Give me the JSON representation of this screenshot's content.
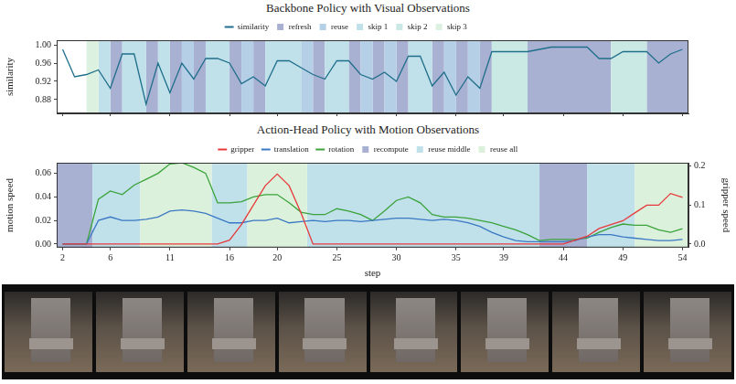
{
  "chart_data": [
    {
      "type": "line",
      "title": "Backbone Policy with Visual Observations",
      "y_label": "similarity",
      "x": [
        2,
        3,
        4,
        5,
        6,
        7,
        8,
        9,
        10,
        11,
        12,
        13,
        14,
        15,
        16,
        17,
        18,
        19,
        20,
        21,
        22,
        23,
        24,
        25,
        26,
        27,
        28,
        29,
        30,
        31,
        32,
        33,
        34,
        35,
        36,
        37,
        38,
        39,
        40,
        41,
        42,
        43,
        44,
        45,
        46,
        47,
        48,
        49,
        50,
        51,
        52,
        53,
        54
      ],
      "series": [
        {
          "name": "similarity",
          "color": "#1f6f8b",
          "values": [
            0.99,
            0.93,
            0.935,
            0.945,
            0.905,
            0.98,
            0.98,
            0.87,
            0.96,
            0.895,
            0.96,
            0.925,
            0.97,
            0.97,
            0.96,
            0.915,
            0.93,
            0.91,
            0.965,
            0.965,
            0.95,
            0.935,
            0.925,
            0.965,
            0.965,
            0.935,
            0.925,
            0.94,
            0.92,
            0.975,
            0.975,
            0.91,
            0.94,
            0.89,
            0.93,
            0.905,
            0.985,
            0.985,
            0.985,
            0.985,
            0.99,
            0.995,
            0.995,
            0.995,
            0.995,
            0.97,
            0.97,
            0.985,
            0.985,
            0.985,
            0.96,
            0.98,
            0.99
          ]
        }
      ],
      "bands": [
        {
          "name": "refresh",
          "color": "#a9b1d3",
          "spans": [
            [
              6,
              7
            ],
            [
              9,
              10
            ],
            [
              11,
              12
            ],
            [
              13,
              14
            ],
            [
              16,
              17
            ],
            [
              18,
              19
            ],
            [
              23,
              24
            ],
            [
              26,
              27
            ],
            [
              28,
              29
            ],
            [
              30,
              31
            ],
            [
              33,
              34
            ],
            [
              35,
              36
            ],
            [
              37,
              38
            ],
            [
              41,
              48
            ],
            [
              51,
              54.5
            ]
          ]
        },
        {
          "name": "reuse",
          "color": "#b5cfe6",
          "spans": [
            [
              12,
              13
            ],
            [
              17,
              18
            ],
            [
              22,
              23
            ],
            [
              27,
              28
            ],
            [
              29,
              30
            ],
            [
              34,
              35
            ],
            [
              36,
              37
            ]
          ]
        },
        {
          "name": "skip 1",
          "color": "#c0e0ea",
          "spans": [
            [
              5,
              6
            ],
            [
              7,
              9
            ],
            [
              10,
              11
            ],
            [
              14,
              16
            ],
            [
              19,
              22
            ],
            [
              24,
              26
            ],
            [
              31,
              33
            ]
          ]
        },
        {
          "name": "skip 2",
          "color": "#cbe9e4",
          "spans": [
            [
              38,
              41
            ],
            [
              48,
              51
            ]
          ]
        },
        {
          "name": "skip 3",
          "color": "#dcf1e0",
          "spans": [
            [
              4,
              5
            ]
          ]
        }
      ],
      "xlim": [
        1.5,
        54.5
      ],
      "xticks": [
        2,
        6,
        11,
        16,
        20,
        25,
        30,
        35,
        39,
        44,
        49,
        54
      ],
      "ylim": [
        0.85,
        1.01
      ],
      "yticks": [
        {
          "value": 0.88,
          "label": "0.88"
        },
        0.92,
        0.96,
        {
          "value": 1,
          "label": "1.00"
        }
      ],
      "tick_labels": "y",
      "grid": false,
      "legend": "top"
    },
    {
      "type": "line",
      "title": "Action-Head Policy with Motion Observations",
      "x_label": "step",
      "y_label": "motion speed",
      "y2_label": "gripper speed",
      "x": [
        2,
        3,
        4,
        5,
        6,
        7,
        8,
        9,
        10,
        11,
        12,
        13,
        14,
        15,
        16,
        17,
        18,
        19,
        20,
        21,
        22,
        23,
        24,
        25,
        26,
        27,
        28,
        29,
        30,
        31,
        32,
        33,
        34,
        35,
        36,
        37,
        38,
        39,
        40,
        41,
        42,
        43,
        44,
        45,
        46,
        47,
        48,
        49,
        50,
        51,
        52,
        53,
        54
      ],
      "series": [
        {
          "name": "gripper",
          "color": "#e8393a",
          "axis": "y2",
          "values": [
            0,
            0,
            0,
            0,
            0,
            0,
            0,
            0,
            0,
            0,
            0,
            0,
            0,
            0,
            0.01,
            0.05,
            0.1,
            0.15,
            0.18,
            0.15,
            0.08,
            0,
            0,
            0,
            0,
            0,
            0,
            0,
            0,
            0,
            0,
            0,
            0,
            0,
            0,
            0,
            0,
            0,
            0,
            0,
            0,
            0,
            0,
            0.01,
            0.02,
            0.04,
            0.05,
            0.06,
            0.08,
            0.1,
            0.1,
            0.13,
            0.12
          ]
        },
        {
          "name": "translation",
          "color": "#3a78c4",
          "values": [
            0,
            0,
            0,
            0.02,
            0.023,
            0.02,
            0.02,
            0.021,
            0.023,
            0.028,
            0.029,
            0.028,
            0.026,
            0.022,
            0.018,
            0.018,
            0.02,
            0.02,
            0.022,
            0.018,
            0.019,
            0.02,
            0.019,
            0.02,
            0.02,
            0.019,
            0.02,
            0.021,
            0.022,
            0.022,
            0.021,
            0.02,
            0.021,
            0.02,
            0.018,
            0.015,
            0.01,
            0.006,
            0.003,
            0.002,
            0.002,
            0.002,
            0.002,
            0.003,
            0.006,
            0.008,
            0.008,
            0.006,
            0.005,
            0.004,
            0.003,
            0.003,
            0.004
          ]
        },
        {
          "name": "rotation",
          "color": "#3aa33a",
          "values": [
            0,
            0,
            0,
            0.038,
            0.045,
            0.042,
            0.05,
            0.055,
            0.06,
            0.068,
            0.069,
            0.065,
            0.06,
            0.035,
            0.035,
            0.036,
            0.04,
            0.042,
            0.042,
            0.035,
            0.027,
            0.025,
            0.025,
            0.03,
            0.028,
            0.025,
            0.02,
            0.028,
            0.037,
            0.04,
            0.035,
            0.025,
            0.023,
            0.023,
            0.022,
            0.02,
            0.018,
            0.015,
            0.012,
            0.008,
            0.003,
            0.004,
            0.004,
            0.004,
            0.005,
            0.01,
            0.014,
            0.017,
            0.016,
            0.016,
            0.012,
            0.01,
            0.013
          ]
        }
      ],
      "bands": [
        {
          "name": "recompute",
          "color": "#a9b1d3",
          "spans": [
            [
              1.5,
              4.5
            ],
            [
              42,
              46
            ]
          ]
        },
        {
          "name": "reuse middle",
          "color": "#c0e0ea",
          "spans": [
            [
              4.5,
              8.5
            ],
            [
              14.5,
              17.5
            ],
            [
              22.5,
              42
            ],
            [
              46,
              50
            ]
          ]
        },
        {
          "name": "reuse all",
          "color": "#dcf1dc",
          "spans": [
            [
              8.5,
              14.5
            ],
            [
              17.5,
              22.5
            ],
            [
              50,
              54.5
            ]
          ]
        }
      ],
      "xlim": [
        1.5,
        54.5
      ],
      "xticks": [
        2,
        6,
        11,
        16,
        20,
        25,
        30,
        35,
        39,
        44,
        49,
        54
      ],
      "ylim": [
        -0.003,
        0.069
      ],
      "yticks": [
        {
          "value": 0,
          "label": "0.00"
        },
        0.02,
        0.04,
        0.06
      ],
      "y2lim": [
        -0.009,
        0.209
      ],
      "y2ticks": [
        {
          "value": 0,
          "label": "0.0"
        },
        0.1,
        0.2
      ],
      "grid": false,
      "legend": "top"
    }
  ]
}
